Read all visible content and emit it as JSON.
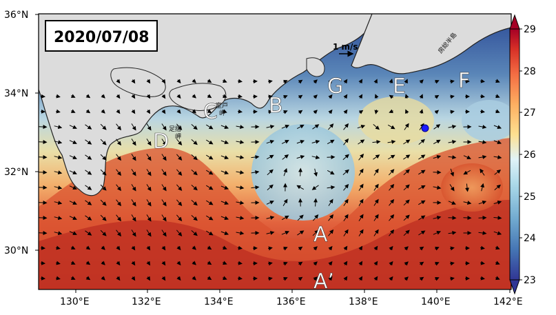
{
  "date_label": "2020/07/08",
  "scale_label": "1 m/s",
  "map": {
    "lon_range": [
      129,
      142
    ],
    "lat_range": [
      29,
      36
    ],
    "x_ticks": [
      "130°E",
      "132°E",
      "134°E",
      "136°E",
      "138°E",
      "140°E",
      "142°E"
    ],
    "y_ticks": [
      "36°N",
      "34°N",
      "32°N",
      "30°N"
    ],
    "land_color": "#dcdcdc",
    "cold_color": "#2a4a9a",
    "warm_color": "#b2241e"
  },
  "region_labels": {
    "A": "A",
    "A_prime": "A’",
    "B": "B",
    "C": "C",
    "D": "D",
    "E": "E",
    "F": "F",
    "G": "G"
  },
  "place_labels": {
    "muroto": "室戸\n岬",
    "ashizuri": "足摺\n岬",
    "boso": "房総半島"
  },
  "colorbar": {
    "min": 23,
    "max": 29,
    "ticks": [
      "29",
      "28",
      "27",
      "26",
      "25",
      "24",
      "23"
    ],
    "stops": [
      "#313695",
      "#4575b4",
      "#74add1",
      "#abd9e9",
      "#e0f3f8",
      "#fee090",
      "#fdae61",
      "#f46d43",
      "#d73027",
      "#a50026"
    ]
  },
  "marker": {
    "label": "blue-dot",
    "color": "#1a1aff"
  }
}
